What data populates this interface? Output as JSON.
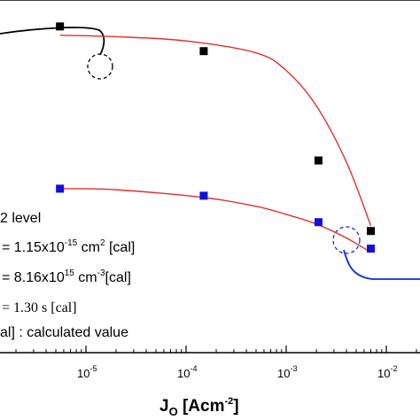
{
  "chart_data": {
    "type": "scatter",
    "x_scale": "log",
    "x_range": [
      1e-06,
      0.02
    ],
    "y_range": [
      0,
      1
    ],
    "xlabel": {
      "main": "J",
      "sub": "O",
      "unit_open": " [Acm",
      "unit_sup": "-2",
      "unit_close": "]"
    },
    "x_ticks": [
      {
        "value": 1e-05,
        "base": "10",
        "exp": "-5"
      },
      {
        "value": 0.0001,
        "base": "10",
        "exp": "-4"
      },
      {
        "value": 0.001,
        "base": "10",
        "exp": "-3"
      },
      {
        "value": 0.01,
        "base": "10",
        "exp": "-2"
      }
    ],
    "series": [
      {
        "color": "#000000",
        "marker": "square",
        "points": [
          {
            "x": 5.5e-06,
            "y": 0.925
          },
          {
            "x": 0.00015,
            "y": 0.855
          },
          {
            "x": 0.0021,
            "y": 0.545
          },
          {
            "x": 0.007,
            "y": 0.345
          }
        ],
        "fit": [
          {
            "x": 5.5e-06,
            "y": 0.9
          },
          {
            "x": 2e-05,
            "y": 0.896
          },
          {
            "x": 0.0001,
            "y": 0.884
          },
          {
            "x": 0.0005,
            "y": 0.85
          },
          {
            "x": 0.001,
            "y": 0.8
          },
          {
            "x": 0.002,
            "y": 0.7
          },
          {
            "x": 0.004,
            "y": 0.54
          },
          {
            "x": 0.007,
            "y": 0.36
          }
        ],
        "fit_color": "#e03030"
      },
      {
        "color": "#1010dd",
        "marker": "square",
        "points": [
          {
            "x": 5.5e-06,
            "y": 0.465
          },
          {
            "x": 0.00015,
            "y": 0.445
          },
          {
            "x": 0.0021,
            "y": 0.37
          },
          {
            "x": 0.007,
            "y": 0.295
          }
        ],
        "fit": [
          {
            "x": 5.5e-06,
            "y": 0.465
          },
          {
            "x": 2e-05,
            "y": 0.462
          },
          {
            "x": 0.00015,
            "y": 0.44
          },
          {
            "x": 0.0005,
            "y": 0.415
          },
          {
            "x": 0.001,
            "y": 0.392
          },
          {
            "x": 0.002,
            "y": 0.365
          },
          {
            "x": 0.004,
            "y": 0.325
          },
          {
            "x": 0.0065,
            "y": 0.29
          }
        ],
        "fit_color": "#e03030"
      }
    ],
    "annotations": {
      "line1": "2 level",
      "line2": {
        "prefix": "",
        "main": "= 1.15x10",
        "sup": "-15",
        "rest": " cm",
        "sup2": "2",
        "tail": " [cal]"
      },
      "line3": {
        "main": "= 8.16x10",
        "sup": "15",
        "rest": "  cm",
        "sup2": "-3",
        "tail": "[cal]"
      },
      "line4": "= 1.30 s [cal]",
      "line5": "al] : calculated value"
    }
  }
}
